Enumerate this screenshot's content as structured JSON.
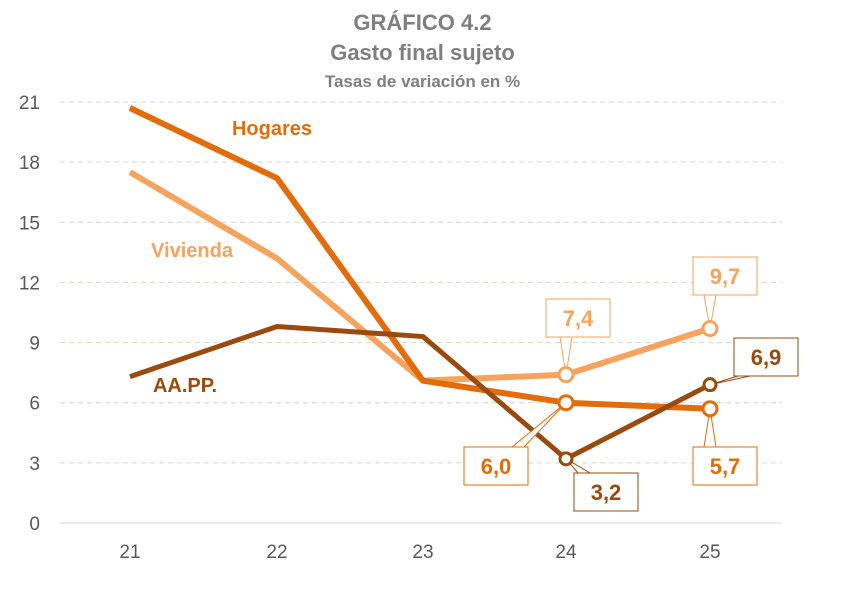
{
  "chart_data": {
    "type": "line",
    "title": "GRÁFICO 4.2",
    "subtitle": "Gasto final sujeto",
    "ylabel": "Tasas de variación en %",
    "xlabel": "",
    "categories": [
      "21",
      "22",
      "23",
      "24",
      "25"
    ],
    "ylim": [
      0,
      21
    ],
    "yticks": [
      0,
      3,
      6,
      9,
      12,
      15,
      18,
      21
    ],
    "grid": true,
    "series": [
      {
        "name": "Hogares",
        "color": "#E36C0A",
        "values": [
          20.7,
          17.2,
          7.1,
          6.0,
          5.7
        ],
        "data_labels": [
          "",
          "",
          "",
          "6,0",
          "5,7"
        ]
      },
      {
        "name": "Vivienda",
        "color": "#F6A35E",
        "values": [
          17.5,
          13.2,
          7.1,
          7.4,
          9.7
        ],
        "data_labels": [
          "",
          "",
          "",
          "7,4",
          "9,7"
        ]
      },
      {
        "name": "AA.PP.",
        "color": "#9A4A0C",
        "values": [
          7.3,
          9.8,
          9.3,
          3.2,
          6.9
        ],
        "data_labels": [
          "",
          "",
          "",
          "3,2",
          "6,9"
        ]
      }
    ]
  }
}
